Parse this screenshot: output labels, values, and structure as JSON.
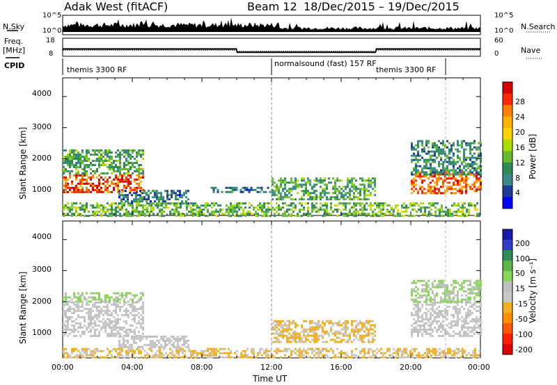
{
  "header": {
    "station": "Adak West (fitACF)",
    "beam": "Beam 12",
    "dates": "18/Dec/2015 – 19/Dec/2015"
  },
  "top_panels": {
    "nsky_label": "N.Sky",
    "nsky_ticks": [
      "10^5",
      "10^0"
    ],
    "nsearch_label": "N.Search",
    "nsearch_ticks": [
      "10^5",
      "10^0"
    ],
    "freq_label_1": "Freq.",
    "freq_label_2": "[MHz]",
    "freq_ticks": [
      "18",
      "8"
    ],
    "nave_label": "Nave",
    "nave_ticks": [
      "60",
      "0"
    ],
    "cpid_label": "CPID"
  },
  "cpid_segments": [
    {
      "label": "themis 3300 RF",
      "start_hour": 0,
      "end_hour": 12
    },
    {
      "label": "normalsound (fast) 157 RF",
      "start_hour": 12,
      "end_hour": 22
    },
    {
      "label": "themis 3300 RF",
      "start_hour": 18,
      "end_hour": 22
    }
  ],
  "power_panel": {
    "ylabel": "Slant Range [km]",
    "yticks": [
      "4000",
      "3000",
      "2000",
      "1000"
    ],
    "colorbar_label": "Power [dB]",
    "colorbar_ticks": [
      "28",
      "24",
      "20",
      "16",
      "12",
      "8",
      "4"
    ],
    "colors": [
      "#d40000",
      "#ff2a00",
      "#ff7f00",
      "#ffb300",
      "#ffd400",
      "#aadd00",
      "#66bb33",
      "#2e8b57",
      "#3a8a8a",
      "#1e3c96",
      "#0000ff"
    ]
  },
  "velocity_panel": {
    "ylabel": "Slant Range [km]",
    "yticks": [
      "4000",
      "3000",
      "2000",
      "1000"
    ],
    "colorbar_label": "Velocity [m s⁻¹]",
    "colorbar_ticks": [
      "200",
      "100",
      "50",
      "15",
      "-15",
      "-50",
      "-100",
      "-200"
    ],
    "colors": [
      "#1a1aa8",
      "#2e3ec8",
      "#2e8b57",
      "#5cb84a",
      "#8ad65a",
      "#c0c0c0",
      "#c8c8c8",
      "#f0b020",
      "#ff9000",
      "#ff5a00",
      "#ff2000",
      "#e00000"
    ]
  },
  "xaxis": {
    "ticks": [
      "00:00",
      "04:00",
      "08:00",
      "12:00",
      "16:00",
      "20:00",
      "00:00"
    ],
    "label": "Time UT"
  },
  "chart_data": {
    "type": "heatmap",
    "title": "Adak West (fitACF) Beam 12 18/Dec/2015 – 19/Dec/2015",
    "xlabel": "Time UT",
    "ylabel": "Slant Range [km]",
    "xlim_hours": [
      0,
      24
    ],
    "ylim_km": [
      180,
      4600
    ],
    "panels": [
      {
        "name": "Power",
        "unit": "dB",
        "colorbar_range": [
          0,
          30
        ],
        "regions": [
          {
            "t0": 0.0,
            "t1": 4.6,
            "r0": 900,
            "r1": 1500,
            "value": 26
          },
          {
            "t0": 0.0,
            "t1": 4.6,
            "r0": 1500,
            "r1": 2300,
            "value": 10
          },
          {
            "t0": 3.2,
            "t1": 7.2,
            "r0": 550,
            "r1": 1000,
            "value": 6
          },
          {
            "t0": 8.5,
            "t1": 12.0,
            "r0": 900,
            "r1": 1100,
            "value": 6
          },
          {
            "t0": 12.0,
            "t1": 18.0,
            "r0": 700,
            "r1": 1400,
            "value": 10
          },
          {
            "t0": 20.0,
            "t1": 24.0,
            "r0": 900,
            "r1": 1600,
            "value": 25
          },
          {
            "t0": 20.0,
            "t1": 24.0,
            "r0": 1500,
            "r1": 2600,
            "value": 8
          },
          {
            "t0": 0.0,
            "t1": 24.0,
            "r0": 180,
            "r1": 600,
            "value": 12
          }
        ]
      },
      {
        "name": "Velocity",
        "unit": "m s-1",
        "colorbar_range": [
          -200,
          200
        ],
        "regions": [
          {
            "t0": 0.0,
            "t1": 4.6,
            "r0": 900,
            "r1": 2000,
            "value": 0
          },
          {
            "t0": 0.0,
            "t1": 4.6,
            "r0": 2000,
            "r1": 2300,
            "value": 40
          },
          {
            "t0": 3.2,
            "t1": 7.2,
            "r0": 550,
            "r1": 900,
            "value": 0
          },
          {
            "t0": 12.0,
            "t1": 18.0,
            "r0": 700,
            "r1": 1400,
            "value": -40
          },
          {
            "t0": 20.0,
            "t1": 24.0,
            "r0": 900,
            "r1": 2000,
            "value": 0
          },
          {
            "t0": 20.0,
            "t1": 24.0,
            "r0": 2000,
            "r1": 2700,
            "value": 40
          },
          {
            "t0": 0.0,
            "t1": 24.0,
            "r0": 180,
            "r1": 500,
            "value": -40
          }
        ]
      }
    ],
    "freq_mhz": [
      {
        "t0": 0.0,
        "t1": 10.0,
        "value": 12
      },
      {
        "t0": 10.0,
        "t1": 18.0,
        "value": 10
      },
      {
        "t0": 18.0,
        "t1": 24.0,
        "value": 12
      }
    ],
    "grid": false,
    "legend": "right colorbar"
  }
}
